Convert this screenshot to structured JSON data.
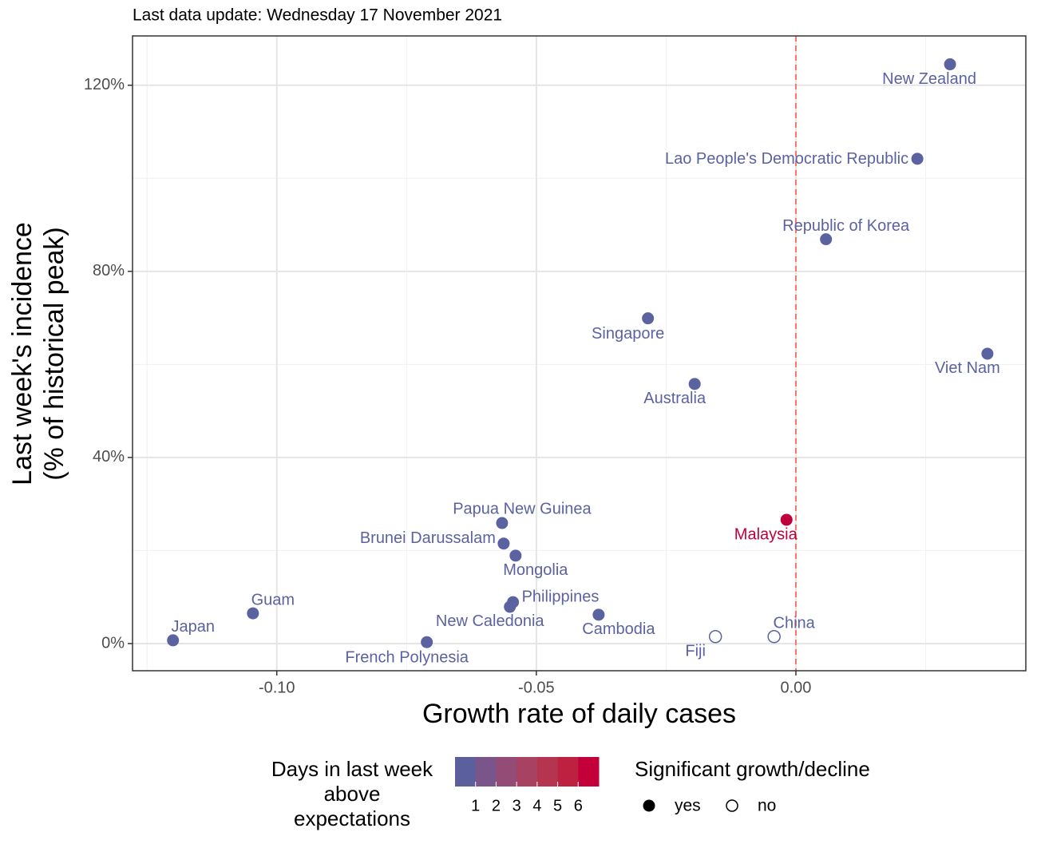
{
  "chart_data": {
    "type": "scatter",
    "title": "Last data update: Wednesday 17 November 2021",
    "x_label": "Growth rate of daily cases",
    "y_label": [
      "Last week's incidence",
      "(% of historical peak)"
    ],
    "labels": [
      "New Zealand",
      "Lao People's Democratic Republic",
      "Republic of Korea",
      "Singapore",
      "Viet Nam",
      "Australia",
      "Malaysia",
      "Papua New Guinea",
      "Brunei Darussalam",
      "Mongolia",
      "Philippines",
      "New Caledonia",
      "Cambodia",
      "Guam",
      "Japan",
      "French Polynesia",
      "Fiji",
      "China"
    ],
    "x": [
      0.0297,
      0.0234,
      0.0058,
      -0.0285,
      0.0369,
      -0.0195,
      -0.0018,
      -0.0566,
      -0.0563,
      -0.054,
      -0.0545,
      -0.0551,
      -0.038,
      -0.1046,
      -0.12,
      -0.0711,
      -0.0155,
      -0.0042
    ],
    "values": [
      124.5,
      104.2,
      86.9,
      69.9,
      62.3,
      55.8,
      26.6,
      25.9,
      21.5,
      18.9,
      8.9,
      7.9,
      6.2,
      6.5,
      0.7,
      0.3,
      1.5,
      1.5
    ],
    "colors": [
      "#5b62a0",
      "#5b62a0",
      "#5b62a0",
      "#5b62a0",
      "#5b62a0",
      "#5b62a0",
      "#c0003b",
      "#5b62a0",
      "#5b62a0",
      "#5b62a0",
      "#5b62a0",
      "#5b62a0",
      "#5b62a0",
      "#5b62a0",
      "#5b62a0",
      "#5b62a0",
      "#5b62a0",
      "#5b62a0"
    ],
    "significant": [
      true,
      true,
      true,
      true,
      true,
      true,
      true,
      true,
      true,
      true,
      true,
      true,
      true,
      true,
      true,
      true,
      false,
      false
    ],
    "xlim": [
      -0.1278,
      0.0443
    ],
    "ylim": [
      -5.84,
      130.6
    ],
    "xticks": [
      {
        "value": -0.1,
        "label": "-0.10"
      },
      {
        "value": -0.05,
        "label": "-0.05"
      },
      {
        "value": 0,
        "label": "0.00"
      }
    ],
    "yticks": [
      {
        "value": 0,
        "label": "0%"
      },
      {
        "value": 40,
        "label": "40%"
      },
      {
        "value": 80,
        "label": "80%"
      },
      {
        "value": 120,
        "label": "120%"
      }
    ],
    "xminor": [
      -0.125,
      -0.075,
      -0.025,
      0.025
    ],
    "yminor": [
      20,
      60,
      100
    ],
    "grid": true,
    "vline": {
      "value": 0,
      "color": "#f8766d"
    },
    "colorbar": {
      "title": [
        "Days in last week",
        "above",
        "expectations"
      ],
      "lim": [
        0,
        7
      ],
      "ticks": [
        1,
        2,
        3,
        4,
        5,
        6
      ],
      "colors": [
        "#5b5f9c",
        "#7a5589",
        "#944c76",
        "#a74262",
        "#b5344f",
        "#be2040",
        "#c4003a"
      ]
    },
    "shape_legend": {
      "title": "Significant growth/decline",
      "items": [
        "yes",
        "no"
      ]
    }
  }
}
